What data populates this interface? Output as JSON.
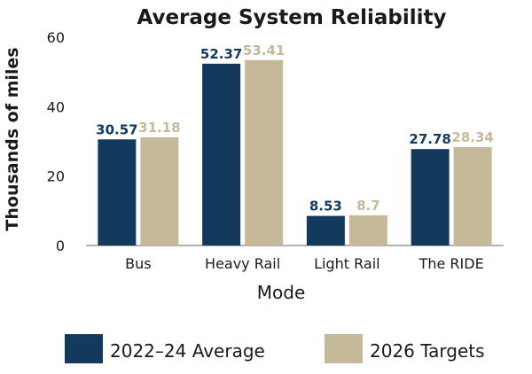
{
  "chart_data": {
    "type": "bar",
    "title": "Average System Reliability",
    "xlabel": "Mode",
    "ylabel": "Thousands of miles",
    "categories": [
      "Bus",
      "Heavy Rail",
      "Light Rail",
      "The RIDE"
    ],
    "series": [
      {
        "name": "2022–24 Average",
        "values": [
          30.57,
          52.37,
          8.53,
          27.78
        ],
        "labels": [
          "30.57",
          "52.37",
          "8.53",
          "27.78"
        ],
        "color": "#13395c"
      },
      {
        "name": "2026 Targets",
        "values": [
          31.18,
          53.41,
          8.7,
          28.34
        ],
        "labels": [
          "31.18",
          "53.41",
          "8.7",
          "28.34"
        ],
        "color": "#c6b99a"
      }
    ],
    "ylim": [
      0,
      60
    ],
    "yticks": [
      0,
      20,
      40,
      60
    ],
    "grid": false,
    "legend": "bottom"
  }
}
